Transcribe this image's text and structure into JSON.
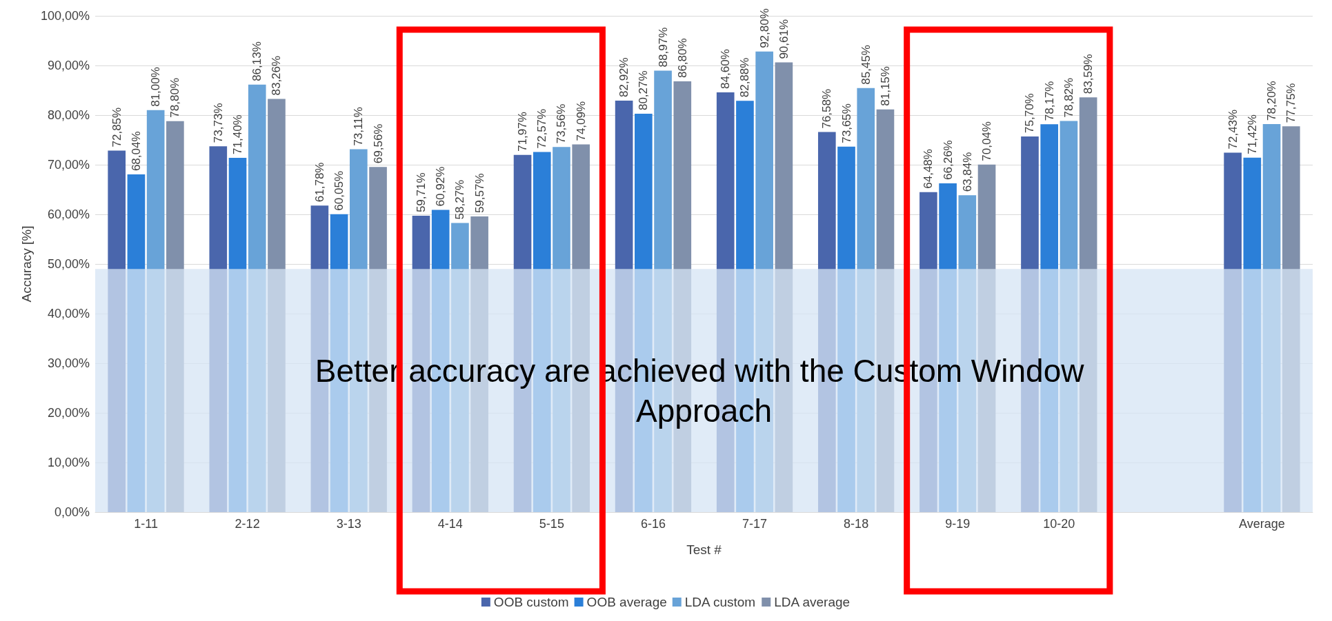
{
  "chart_data": {
    "type": "bar",
    "xlabel": "Test #",
    "ylabel": "Accuracy [%]",
    "categories": [
      "1-11",
      "2-12",
      "3-13",
      "4-14",
      "5-15",
      "6-16",
      "7-17",
      "8-18",
      "9-19",
      "10-20",
      null,
      "Average"
    ],
    "series": [
      {
        "name": "OOB custom",
        "color": "#4a66ac",
        "values": [
          72.85,
          73.73,
          61.78,
          59.71,
          71.97,
          82.92,
          84.6,
          76.58,
          64.48,
          75.7,
          null,
          72.43
        ],
        "value_labels": [
          "72,85%",
          "73,73%",
          "61,78%",
          "59,71%",
          "71,97%",
          "82,92%",
          "84,60%",
          "76,58%",
          "64,48%",
          "75,70%",
          null,
          "72,43%"
        ]
      },
      {
        "name": "OOB average",
        "color": "#2b7fd8",
        "values": [
          68.04,
          71.4,
          60.05,
          60.92,
          72.57,
          80.27,
          82.88,
          73.65,
          66.26,
          78.17,
          null,
          71.42
        ],
        "value_labels": [
          "68,04%",
          "71,40%",
          "60,05%",
          "60,92%",
          "72,57%",
          "80,27%",
          "82,88%",
          "73,65%",
          "66,26%",
          "78,17%",
          null,
          "71,42%"
        ]
      },
      {
        "name": "LDA custom",
        "color": "#68a3d8",
        "values": [
          81.0,
          86.13,
          73.11,
          58.27,
          73.56,
          88.97,
          92.8,
          85.45,
          63.84,
          78.82,
          null,
          78.2
        ],
        "value_labels": [
          "81,00%",
          "86,13%",
          "73,11%",
          "58,27%",
          "73,56%",
          "88,97%",
          "92,80%",
          "85,45%",
          "63,84%",
          "78,82%",
          null,
          "78,20%"
        ]
      },
      {
        "name": "LDA average",
        "color": "#8090ab",
        "values": [
          78.8,
          83.26,
          69.56,
          59.57,
          74.09,
          86.8,
          90.61,
          81.15,
          70.04,
          83.59,
          null,
          77.75
        ],
        "value_labels": [
          "78,80%",
          "83,26%",
          "69,56%",
          "59,57%",
          "74,09%",
          "86,80%",
          "90,61%",
          "81,15%",
          "70,04%",
          "83,59%",
          null,
          "77,75%"
        ]
      }
    ],
    "ylim": [
      0,
      100
    ],
    "yticks": [
      {
        "value": 0,
        "label": "0,00%"
      },
      {
        "value": 10,
        "label": "10,00%"
      },
      {
        "value": 20,
        "label": "20,00%"
      },
      {
        "value": 30,
        "label": "30,00%"
      },
      {
        "value": 40,
        "label": "40,00%"
      },
      {
        "value": 50,
        "label": "50,00%"
      },
      {
        "value": 60,
        "label": "60,00%"
      },
      {
        "value": 70,
        "label": "70,00%"
      },
      {
        "value": 80,
        "label": "80,00%"
      },
      {
        "value": 90,
        "label": "90,00%"
      },
      {
        "value": 100,
        "label": "100,00%"
      }
    ],
    "grid": "y",
    "legend": "bottom",
    "bands": [
      {
        "axis": "y",
        "from": 0,
        "to": 49,
        "label": "Better accuracy are achieved with the Custom Window Approach",
        "color": "#d5e4f4"
      }
    ]
  }
}
